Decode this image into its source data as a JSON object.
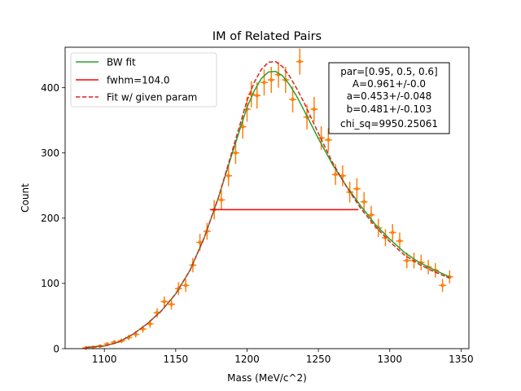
{
  "chart_data": {
    "type": "scatter",
    "title": "IM of Related Pairs",
    "xlabel": "Mass (MeV/c^2)",
    "ylabel": "Count",
    "xlim": [
      1072.5,
      1355.5
    ],
    "ylim": [
      0,
      462
    ],
    "xticks": [
      1100,
      1150,
      1200,
      1250,
      1300,
      1350
    ],
    "yticks": [
      0,
      100,
      200,
      300,
      400
    ],
    "grid": false,
    "legend": {
      "placement": "upper left",
      "entries": [
        {
          "label": "BW fit",
          "color": "#2ca02c",
          "style": "solid"
        },
        {
          "label": "fwhm=104.0",
          "color": "#ff0000",
          "style": "solid"
        },
        {
          "label": "Fit w/ given param",
          "color": "#d62728",
          "style": "dashed"
        }
      ]
    },
    "annotation": {
      "placement": "upper right",
      "lines": [
        "par=[0.95, 0.5, 0.6]",
        "A=0.961+/-0.0",
        "a=0.453+/-0.048",
        "b=0.481+/-0.103",
        "chi_sq=9950.25061"
      ]
    },
    "fwhm_line": {
      "x": [
        1174,
        1278
      ],
      "y": 213,
      "color": "#ff0000"
    },
    "data_points": {
      "color": "#ff7f0e",
      "x": [
        1087,
        1092,
        1097,
        1102,
        1107,
        1112,
        1117,
        1122,
        1127,
        1132,
        1137,
        1142,
        1147,
        1152,
        1157,
        1162,
        1167,
        1172,
        1177,
        1182,
        1187,
        1192,
        1197,
        1200,
        1203,
        1207,
        1212,
        1217,
        1222,
        1227,
        1232,
        1237,
        1242,
        1247,
        1252,
        1257,
        1262,
        1267,
        1272,
        1277,
        1282,
        1287,
        1292,
        1297,
        1302,
        1307,
        1312,
        1317,
        1322,
        1327,
        1332,
        1337,
        1342
      ],
      "y": [
        1,
        2,
        4,
        7,
        10,
        12,
        17,
        22,
        30,
        38,
        55,
        72,
        68,
        92,
        97,
        128,
        163,
        180,
        213,
        228,
        265,
        300,
        340,
        367,
        390,
        388,
        408,
        412,
        420,
        412,
        382,
        440,
        355,
        367,
        323,
        320,
        267,
        265,
        240,
        245,
        225,
        205,
        185,
        170,
        178,
        165,
        135,
        135,
        132,
        125,
        120,
        97,
        110
      ],
      "yerr": [
        1,
        1.5,
        2,
        3,
        3,
        3.5,
        4,
        5,
        5.5,
        6,
        7,
        8,
        8,
        10,
        10,
        11,
        13,
        13,
        15,
        15,
        16,
        17,
        18,
        19,
        20,
        20,
        20,
        20,
        20,
        20,
        20,
        20,
        19,
        19,
        18,
        18,
        16,
        16,
        16,
        16,
        15,
        14,
        14,
        13,
        13,
        13,
        12,
        12,
        12,
        11,
        11,
        10,
        10
      ],
      "xerr": 2.5
    },
    "series": [
      {
        "name": "BW fit",
        "color": "#2ca02c",
        "style": "solid",
        "x": [
          1087,
          1100,
          1110,
          1120,
          1130,
          1140,
          1150,
          1160,
          1170,
          1180,
          1190,
          1200,
          1205,
          1210,
          1215,
          1220,
          1225,
          1230,
          1235,
          1240,
          1250,
          1260,
          1270,
          1280,
          1290,
          1300,
          1310,
          1320,
          1330,
          1342
        ],
        "y": [
          2,
          4,
          10,
          22,
          38,
          58,
          84,
          120,
          170,
          232,
          302,
          370,
          395,
          414,
          424,
          425,
          418,
          404,
          386,
          365,
          322,
          282,
          248,
          218,
          190,
          168,
          148,
          133,
          122,
          110
        ]
      },
      {
        "name": "Fit w/ given param",
        "color": "#d62728",
        "style": "dashed",
        "x": [
          1087,
          1100,
          1110,
          1120,
          1130,
          1140,
          1150,
          1160,
          1170,
          1180,
          1190,
          1200,
          1205,
          1210,
          1215,
          1220,
          1225,
          1230,
          1235,
          1240,
          1250,
          1260,
          1270,
          1280,
          1290,
          1300,
          1310,
          1320,
          1330,
          1342
        ],
        "y": [
          2,
          4,
          10,
          22,
          38,
          58,
          84,
          120,
          170,
          232,
          306,
          380,
          408,
          428,
          439,
          440,
          432,
          417,
          398,
          377,
          330,
          285,
          247,
          214,
          187,
          164,
          144,
          130,
          119,
          108
        ]
      }
    ]
  }
}
